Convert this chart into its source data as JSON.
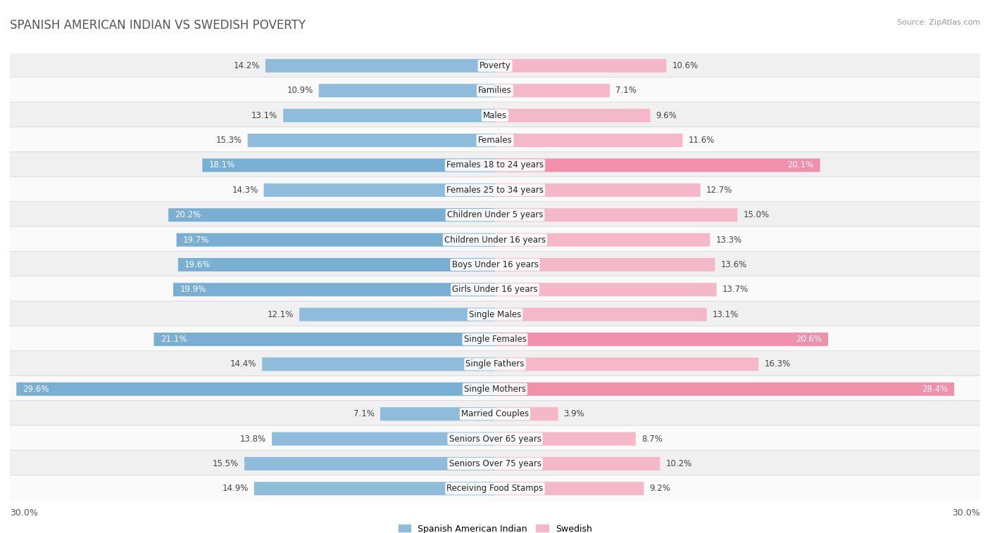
{
  "title": "SPANISH AMERICAN INDIAN VS SWEDISH POVERTY",
  "source": "Source: ZipAtlas.com",
  "categories": [
    "Poverty",
    "Families",
    "Males",
    "Females",
    "Females 18 to 24 years",
    "Females 25 to 34 years",
    "Children Under 5 years",
    "Children Under 16 years",
    "Boys Under 16 years",
    "Girls Under 16 years",
    "Single Males",
    "Single Females",
    "Single Fathers",
    "Single Mothers",
    "Married Couples",
    "Seniors Over 65 years",
    "Seniors Over 75 years",
    "Receiving Food Stamps"
  ],
  "left_values": [
    14.2,
    10.9,
    13.1,
    15.3,
    18.1,
    14.3,
    20.2,
    19.7,
    19.6,
    19.9,
    12.1,
    21.1,
    14.4,
    29.6,
    7.1,
    13.8,
    15.5,
    14.9
  ],
  "right_values": [
    10.6,
    7.1,
    9.6,
    11.6,
    20.1,
    12.7,
    15.0,
    13.3,
    13.6,
    13.7,
    13.1,
    20.6,
    16.3,
    28.4,
    3.9,
    8.7,
    10.2,
    9.2
  ],
  "left_color_normal": "#8fbcdb",
  "left_color_highlight": "#7aafd4",
  "right_color_normal": "#f5b8c8",
  "right_color_highlight": "#f090aa",
  "row_bg_even": "#f0f0f0",
  "row_bg_odd": "#fafafa",
  "axis_max": 30.0,
  "highlight_threshold": 17.0,
  "left_label": "Spanish American Indian",
  "right_label": "Swedish",
  "title_fontsize": 12,
  "source_fontsize": 8,
  "cat_fontsize": 8.5,
  "val_fontsize": 8.5
}
